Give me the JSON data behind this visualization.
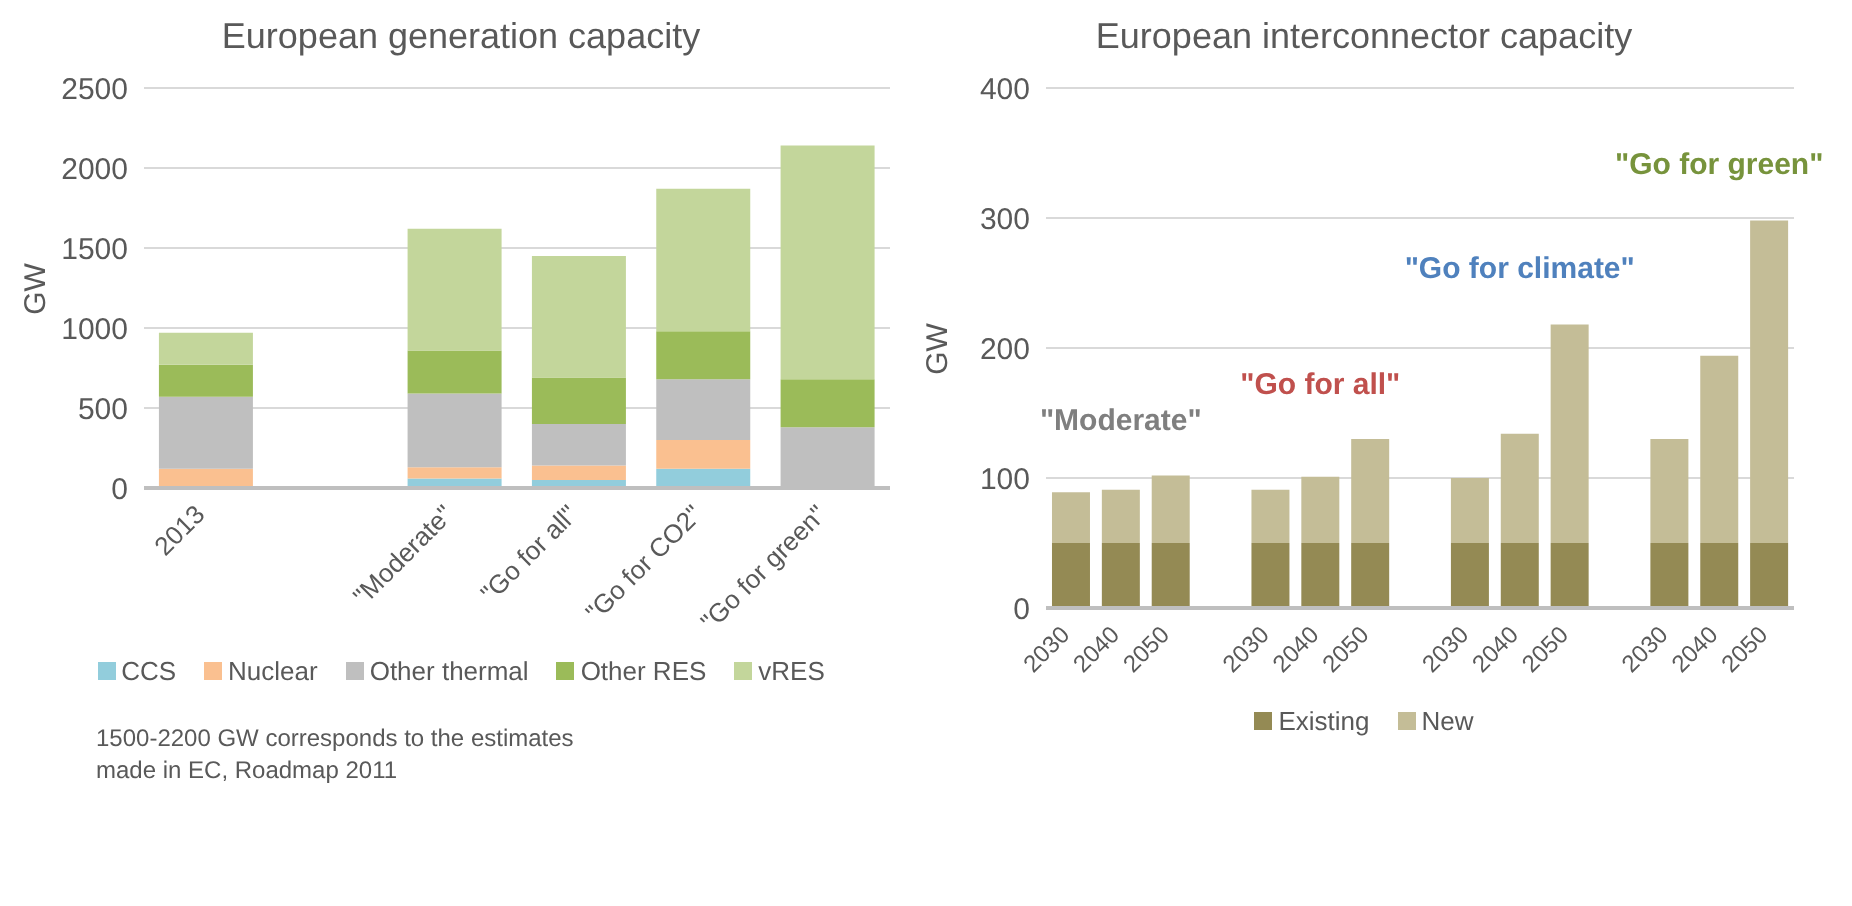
{
  "chart_data": [
    {
      "type": "bar",
      "stacked": true,
      "title": "European generation capacity",
      "ylabel": "GW",
      "categories": [
        "2013",
        null,
        "\"Moderate\"",
        "\"Go for all\"",
        "\"Go for CO2\"",
        "\"Go for green\""
      ],
      "series": [
        {
          "name": "CCS",
          "color": "#92cddc",
          "values": [
            0,
            null,
            60,
            50,
            120,
            0
          ]
        },
        {
          "name": "Nuclear",
          "color": "#fac090",
          "values": [
            120,
            null,
            70,
            90,
            180,
            0
          ]
        },
        {
          "name": "Other thermal",
          "color": "#bfbfbf",
          "values": [
            450,
            null,
            460,
            260,
            380,
            380
          ]
        },
        {
          "name": "Other RES",
          "color": "#9bbb59",
          "values": [
            200,
            null,
            270,
            290,
            300,
            300
          ]
        },
        {
          "name": "vRES",
          "color": "#c3d69b",
          "values": [
            200,
            null,
            760,
            760,
            890,
            1460
          ]
        }
      ],
      "ylim": [
        0,
        2500
      ],
      "yticks": [
        0,
        500,
        1000,
        1500,
        2000,
        2500
      ],
      "grid": "y",
      "legend": "bottom",
      "annotations": [
        "1500-2200 GW corresponds to the estimates made in EC, Roadmap 2011"
      ]
    },
    {
      "type": "bar",
      "stacked": true,
      "title": "European interconnector capacity",
      "ylabel": "GW",
      "categories": [
        "2030",
        "2040",
        "2050",
        null,
        "2030",
        "2040",
        "2050",
        null,
        "2030",
        "2040",
        "2050",
        null,
        "2030",
        "2040",
        "2050"
      ],
      "series": [
        {
          "name": "Existing",
          "color": "#948a54",
          "values": [
            50,
            50,
            50,
            null,
            50,
            50,
            50,
            null,
            50,
            50,
            50,
            null,
            50,
            50,
            50
          ]
        },
        {
          "name": "New",
          "color": "#c4bd97",
          "values": [
            39,
            41,
            52,
            null,
            41,
            51,
            80,
            null,
            50,
            84,
            168,
            null,
            80,
            144,
            248
          ]
        }
      ],
      "ylim": [
        0,
        400
      ],
      "yticks": [
        0,
        100,
        200,
        300,
        400
      ],
      "grid": "y",
      "legend": "bottom",
      "annotations": [
        "\"Moderate\"",
        "\"Go for all\"",
        "\"Go for climate\"",
        "\"Go for green\""
      ]
    }
  ]
}
